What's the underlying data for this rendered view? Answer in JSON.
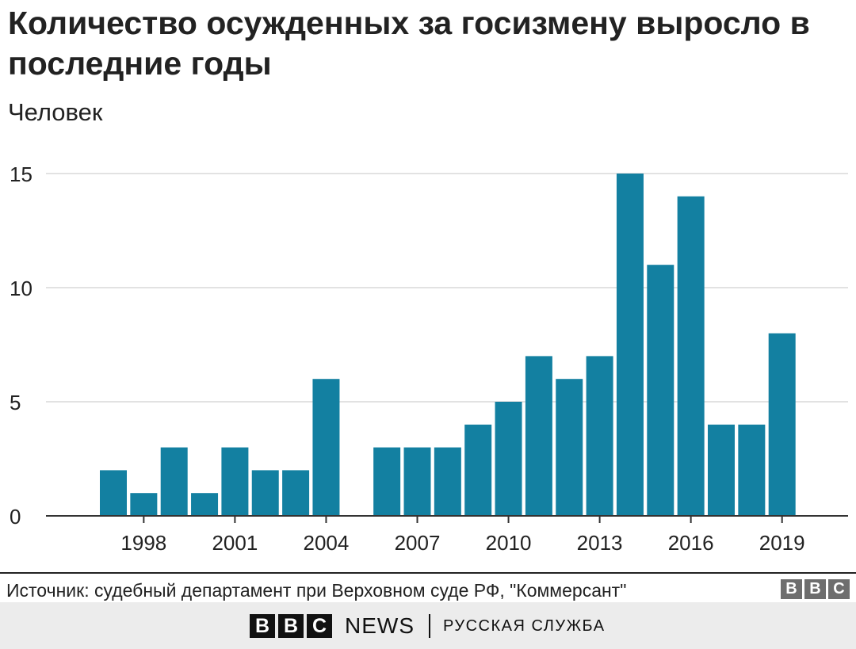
{
  "title": "Количество осужденных за госизмену выросло в последние годы",
  "subtitle": "Человек",
  "chart_data": {
    "type": "bar",
    "title": "Количество осужденных за госизмену выросло в последние годы",
    "ylabel": "Человек",
    "xlabel": "",
    "categories": [
      1997,
      1998,
      1999,
      2000,
      2001,
      2002,
      2003,
      2004,
      2005,
      2006,
      2007,
      2008,
      2009,
      2010,
      2011,
      2012,
      2013,
      2014,
      2015,
      2016,
      2017,
      2018,
      2019
    ],
    "values": [
      2,
      1,
      3,
      1,
      3,
      2,
      2,
      6,
      0,
      3,
      3,
      3,
      4,
      5,
      7,
      6,
      7,
      15,
      11,
      14,
      4,
      4,
      8
    ],
    "x_ticks": [
      "1998",
      "2001",
      "2004",
      "2007",
      "2010",
      "2013",
      "2016",
      "2019"
    ],
    "y_ticks": [
      "0",
      "5",
      "10",
      "15"
    ],
    "ylim": [
      0,
      15
    ],
    "grid": true,
    "bar_color": "#1380a1"
  },
  "source": "Источник: судебный департамент при Верховном суде РФ, \"Коммерсант\"",
  "logo_letters": [
    "B",
    "B",
    "C"
  ],
  "footer": {
    "logo_letters": [
      "B",
      "B",
      "C"
    ],
    "news": "NEWS",
    "service": "РУССКАЯ СЛУЖБА"
  }
}
